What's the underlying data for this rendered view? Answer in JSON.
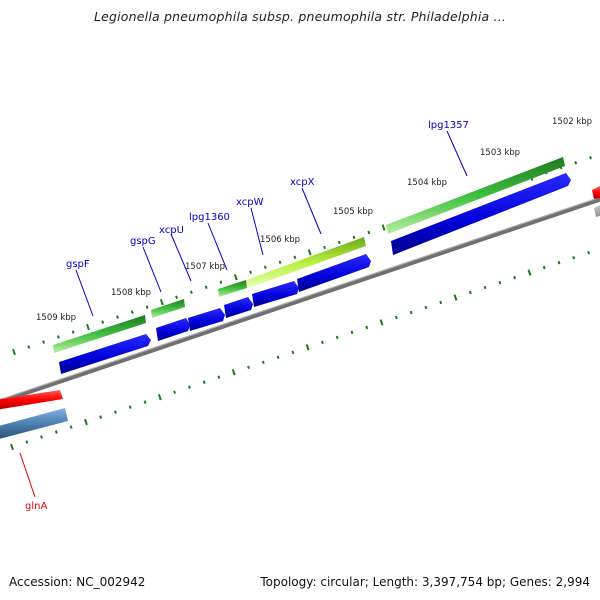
{
  "title": "Legionella pneumophila subsp. pneumophila str. Philadelphia ...",
  "footer": {
    "accession": "Accession: NC_002942",
    "summary": "Topology: circular; Length: 3,397,754 bp; Genes: 2,994"
  },
  "colors": {
    "backbone": "#808080",
    "tick": "#1a7a1a",
    "forward_gene_dark": "#2a8a2a",
    "forward_gene_light": "#a8e838",
    "cds_blue": "#0000e0",
    "reverse_red": "#ff0000",
    "reverse_steel": "#4a7fb0",
    "label_blue": "#0000cc",
    "label_red": "#dd0000"
  },
  "ruler_labels": [
    "1509 kbp",
    "1508 kbp",
    "1507 kbp",
    "1506 kbp",
    "1505 kbp",
    "1504 kbp",
    "1503 kbp",
    "1502 kbp"
  ],
  "gene_labels": [
    {
      "text": "gspF",
      "color": "label_blue"
    },
    {
      "text": "gspG",
      "color": "label_blue"
    },
    {
      "text": "xcpU",
      "color": "label_blue"
    },
    {
      "text": "lpg1360",
      "color": "label_blue"
    },
    {
      "text": "xcpW",
      "color": "label_blue"
    },
    {
      "text": "xcpX",
      "color": "label_blue"
    },
    {
      "text": "lpg1357",
      "color": "label_blue"
    },
    {
      "text": "glnA",
      "color": "label_red"
    }
  ]
}
